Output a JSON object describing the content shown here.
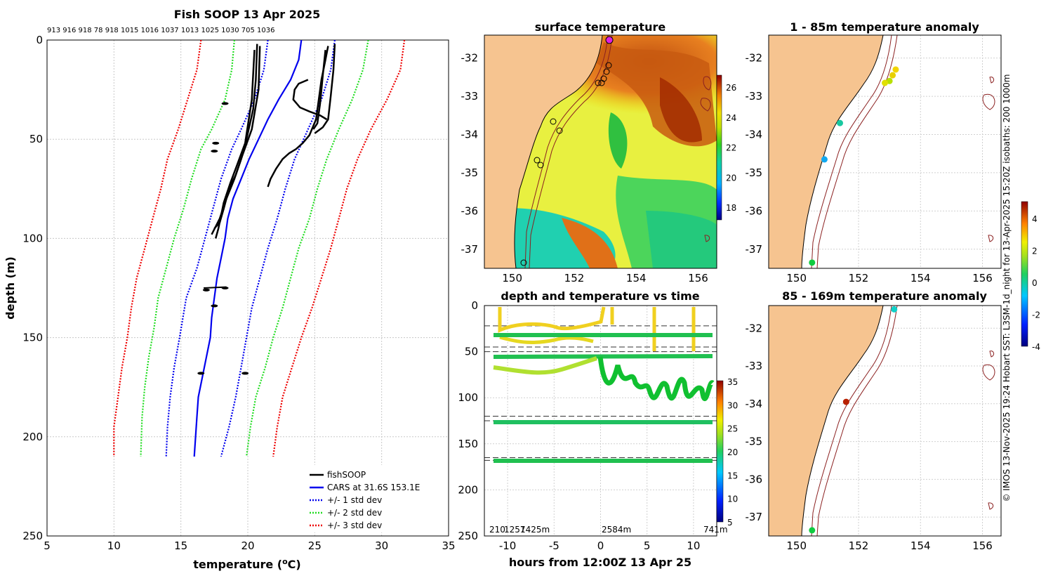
{
  "chart_data": [
    {
      "type": "line",
      "title": "Fish SOOP 13 Apr 2025",
      "top_labels": "913 916 918 78 918 1015 1016 1037 1013 1025 1030 705 1036",
      "xlabel": "temperature (",
      "xlabel_sup": "o",
      "xlabel_end": "C)",
      "ylabel": "depth (m)",
      "xlim": [
        5,
        35
      ],
      "ylim": [
        250,
        0
      ],
      "xticks": [
        "5",
        "10",
        "15",
        "20",
        "25",
        "30",
        "35"
      ],
      "yticks": [
        "0",
        "50",
        "100",
        "150",
        "200",
        "250"
      ],
      "legend": [
        {
          "label": "fishSOOP",
          "color": "#000000",
          "style": "solid"
        },
        {
          "label": "CARS at 31.6S 153.1E",
          "color": "#0000ee",
          "style": "solid"
        },
        {
          "label": "+/- 1 std dev",
          "color": "#0000ee",
          "style": "dotted"
        },
        {
          "label": "+/- 2 std dev",
          "color": "#22dd22",
          "style": "dotted"
        },
        {
          "label": "+/- 3 std dev",
          "color": "#ee0000",
          "style": "dotted"
        }
      ],
      "series": [
        {
          "name": "CARS",
          "color": "#0000ee",
          "style": "solid",
          "points": [
            [
              24,
              0
            ],
            [
              23.8,
              10
            ],
            [
              23.2,
              20
            ],
            [
              22.3,
              30
            ],
            [
              21.5,
              40
            ],
            [
              20.8,
              50
            ],
            [
              20.1,
              60
            ],
            [
              19.5,
              70
            ],
            [
              18.9,
              80
            ],
            [
              18.5,
              90
            ],
            [
              18.3,
              100
            ],
            [
              18,
              110
            ],
            [
              17.7,
              120
            ],
            [
              17.5,
              130
            ],
            [
              17.3,
              140
            ],
            [
              17.2,
              150
            ],
            [
              16.9,
              160
            ],
            [
              16.6,
              170
            ],
            [
              16.3,
              180
            ],
            [
              16.2,
              190
            ],
            [
              16.1,
              200
            ],
            [
              16,
              210
            ]
          ]
        },
        {
          "name": "+1 std",
          "color": "#0000ee",
          "style": "dotted",
          "points": [
            [
              26.5,
              0
            ],
            [
              26.2,
              15
            ],
            [
              25.5,
              30
            ],
            [
              24.5,
              45
            ],
            [
              23.5,
              60
            ],
            [
              22.8,
              75
            ],
            [
              22.2,
              90
            ],
            [
              21.5,
              105
            ],
            [
              20.9,
              120
            ],
            [
              20.3,
              135
            ],
            [
              19.9,
              150
            ],
            [
              19.5,
              165
            ],
            [
              19.1,
              180
            ],
            [
              18.6,
              195
            ],
            [
              18,
              210
            ]
          ]
        },
        {
          "name": "-1 std",
          "color": "#0000ee",
          "style": "dotted",
          "points": [
            [
              21.5,
              0
            ],
            [
              21.2,
              15
            ],
            [
              20.5,
              30
            ],
            [
              19.5,
              45
            ],
            [
              18.8,
              55
            ],
            [
              18,
              70
            ],
            [
              17.4,
              85
            ],
            [
              16.8,
              100
            ],
            [
              16.2,
              115
            ],
            [
              15.4,
              130
            ],
            [
              14.9,
              150
            ],
            [
              14.5,
              165
            ],
            [
              14.2,
              180
            ],
            [
              14,
              195
            ],
            [
              13.9,
              210
            ]
          ]
        },
        {
          "name": "+2 std",
          "color": "#22dd22",
          "style": "dotted",
          "points": [
            [
              29,
              0
            ],
            [
              28.6,
              15
            ],
            [
              27.8,
              30
            ],
            [
              26.8,
              45
            ],
            [
              25.9,
              60
            ],
            [
              25.2,
              75
            ],
            [
              24.6,
              90
            ],
            [
              23.8,
              105
            ],
            [
              23.2,
              120
            ],
            [
              22.6,
              135
            ],
            [
              21.9,
              150
            ],
            [
              21.3,
              165
            ],
            [
              20.6,
              180
            ],
            [
              20.2,
              195
            ],
            [
              19.9,
              210
            ]
          ]
        },
        {
          "name": "-2 std",
          "color": "#22dd22",
          "style": "dotted",
          "points": [
            [
              19,
              0
            ],
            [
              18.8,
              15
            ],
            [
              18.3,
              30
            ],
            [
              17.3,
              45
            ],
            [
              16.5,
              55
            ],
            [
              15.8,
              70
            ],
            [
              15.2,
              85
            ],
            [
              14.5,
              100
            ],
            [
              13.9,
              115
            ],
            [
              13.3,
              130
            ],
            [
              13,
              145
            ],
            [
              12.6,
              160
            ],
            [
              12.3,
              175
            ],
            [
              12.1,
              190
            ],
            [
              12,
              210
            ]
          ]
        },
        {
          "name": "+3 std",
          "color": "#ee0000",
          "style": "dotted",
          "points": [
            [
              31.7,
              0
            ],
            [
              31.4,
              15
            ],
            [
              30.4,
              30
            ],
            [
              29.2,
              45
            ],
            [
              28.2,
              60
            ],
            [
              27.4,
              75
            ],
            [
              26.8,
              90
            ],
            [
              26.2,
              105
            ],
            [
              25.5,
              120
            ],
            [
              24.8,
              135
            ],
            [
              24,
              150
            ],
            [
              23.3,
              165
            ],
            [
              22.6,
              180
            ],
            [
              22.2,
              195
            ],
            [
              21.9,
              210
            ]
          ]
        },
        {
          "name": "-3 std",
          "color": "#ee0000",
          "style": "dotted",
          "points": [
            [
              16.5,
              0
            ],
            [
              16.2,
              15
            ],
            [
              15.5,
              30
            ],
            [
              14.8,
              45
            ],
            [
              14,
              60
            ],
            [
              13.5,
              75
            ],
            [
              12.9,
              90
            ],
            [
              12.3,
              105
            ],
            [
              11.7,
              120
            ],
            [
              11.3,
              135
            ],
            [
              11,
              150
            ],
            [
              10.6,
              165
            ],
            [
              10.3,
              180
            ],
            [
              10,
              195
            ],
            [
              10,
              210
            ]
          ]
        }
      ],
      "fishsoop": [
        [
          [
            20.7,
            2
          ],
          [
            20.6,
            20
          ],
          [
            20.4,
            35
          ],
          [
            19.9,
            50
          ],
          [
            19.5,
            60
          ],
          [
            19.1,
            68
          ],
          [
            18.6,
            75
          ],
          [
            18.2,
            85
          ],
          [
            17.9,
            92
          ],
          [
            17.5,
            95
          ]
        ],
        [
          [
            20.9,
            3
          ],
          [
            20.8,
            25
          ],
          [
            20.3,
            45
          ],
          [
            19.6,
            58
          ],
          [
            19.0,
            70
          ],
          [
            18.4,
            80
          ],
          [
            17.9,
            90
          ],
          [
            17.3,
            98
          ]
        ],
        [
          [
            20.5,
            5
          ],
          [
            20.3,
            30
          ],
          [
            19.8,
            52
          ],
          [
            19.2,
            63
          ],
          [
            18.7,
            72
          ],
          [
            18.2,
            82
          ],
          [
            17.8,
            95
          ],
          [
            17.6,
            100
          ]
        ],
        [
          [
            26,
            3
          ],
          [
            25.8,
            10
          ],
          [
            25.5,
            20
          ],
          [
            25.3,
            30
          ],
          [
            25.1,
            40
          ],
          [
            24.6,
            48
          ],
          [
            24.1,
            52
          ],
          [
            23.6,
            55
          ],
          [
            23.1,
            57
          ],
          [
            22.6,
            60
          ],
          [
            22.1,
            65
          ],
          [
            21.7,
            70
          ],
          [
            21.5,
            74
          ]
        ],
        [
          [
            26.5,
            2
          ],
          [
            26.4,
            15
          ],
          [
            26.2,
            28
          ],
          [
            26.0,
            40
          ],
          [
            25.6,
            44
          ],
          [
            25.0,
            47
          ]
        ],
        [
          [
            25.8,
            5
          ],
          [
            25.6,
            18
          ],
          [
            25.4,
            32
          ],
          [
            25.2,
            42
          ],
          [
            24.9,
            45
          ]
        ],
        [
          [
            24.5,
            20
          ],
          [
            23.8,
            22
          ],
          [
            23.5,
            25
          ],
          [
            23.4,
            30
          ],
          [
            23.9,
            34
          ],
          [
            24.6,
            36
          ],
          [
            25.4,
            38
          ],
          [
            25.9,
            40
          ]
        ]
      ],
      "fishsoop_blobs": [
        [
          18.3,
          32
        ],
        [
          17.6,
          52
        ],
        [
          17.5,
          56
        ],
        [
          16.9,
          126
        ],
        [
          18.3,
          125
        ],
        [
          17.5,
          134
        ],
        [
          16.5,
          168
        ],
        [
          19.8,
          168
        ]
      ]
    },
    {
      "type": "heatmap",
      "title": "surface temperature",
      "xticks": [
        "150",
        "152",
        "154",
        "156"
      ],
      "yticks": [
        "-32",
        "-33",
        "-34",
        "-35",
        "-36",
        "-37"
      ],
      "colorbar_ticks": [
        "26",
        "24",
        "22",
        "20",
        "18"
      ]
    },
    {
      "type": "scatter",
      "title": "depth and temperature vs time",
      "xlabel": "hours from 12:00Z 13 Apr 25",
      "xlim": [
        -12.5,
        12.5
      ],
      "ylim": [
        250,
        0
      ],
      "xticks": [
        "-10",
        "-5",
        "0",
        "5",
        "10"
      ],
      "yticks": [
        "0",
        "50",
        "100",
        "150",
        "200",
        "250"
      ],
      "colorbar_ticks": [
        "35",
        "30",
        "25",
        "20",
        "15",
        "10",
        "5"
      ],
      "bottom_labels": [
        "210",
        "1257",
        "1425m",
        "2584m",
        "741m"
      ],
      "dashed_lines": [
        22,
        45,
        50,
        120,
        125,
        165,
        168
      ]
    },
    {
      "type": "scatter",
      "title": "1 - 85m temperature anomaly",
      "xticks": [
        "150",
        "152",
        "154",
        "156"
      ],
      "yticks": [
        "-32",
        "-33",
        "-34",
        "-35",
        "-36",
        "-37"
      ],
      "points": [
        {
          "lon": 153.2,
          "lat": -32.3,
          "color": "#f2d400"
        },
        {
          "lon": 153.1,
          "lat": -32.45,
          "color": "#e8d000"
        },
        {
          "lon": 153.0,
          "lat": -32.6,
          "color": "#b8e000"
        },
        {
          "lon": 152.85,
          "lat": -32.65,
          "color": "#e0e000"
        },
        {
          "lon": 151.4,
          "lat": -33.7,
          "color": "#18c8a0"
        },
        {
          "lon": 150.9,
          "lat": -34.65,
          "color": "#10a8f0"
        },
        {
          "lon": 150.5,
          "lat": -37.35,
          "color": "#10cc40"
        }
      ]
    },
    {
      "type": "scatter",
      "title": "85 - 169m temperature anomaly",
      "xticks": [
        "150",
        "152",
        "154",
        "156"
      ],
      "yticks": [
        "-32",
        "-33",
        "-34",
        "-35",
        "-36",
        "-37"
      ],
      "colorbar_ticks": [
        "4",
        "2",
        "0",
        "-2",
        "-4"
      ],
      "points": [
        {
          "lon": 153.15,
          "lat": -31.5,
          "color": "#10d0c8"
        },
        {
          "lon": 151.6,
          "lat": -33.95,
          "color": "#b82000"
        },
        {
          "lon": 150.5,
          "lat": -37.35,
          "color": "#10cc40"
        }
      ]
    }
  ],
  "side_note": "© IMOS 13-Nov-2025 19:24 Hobart SST: L3SM-1d_night for 13-Apr-2025 15:20Z isobaths: 200  1000m"
}
